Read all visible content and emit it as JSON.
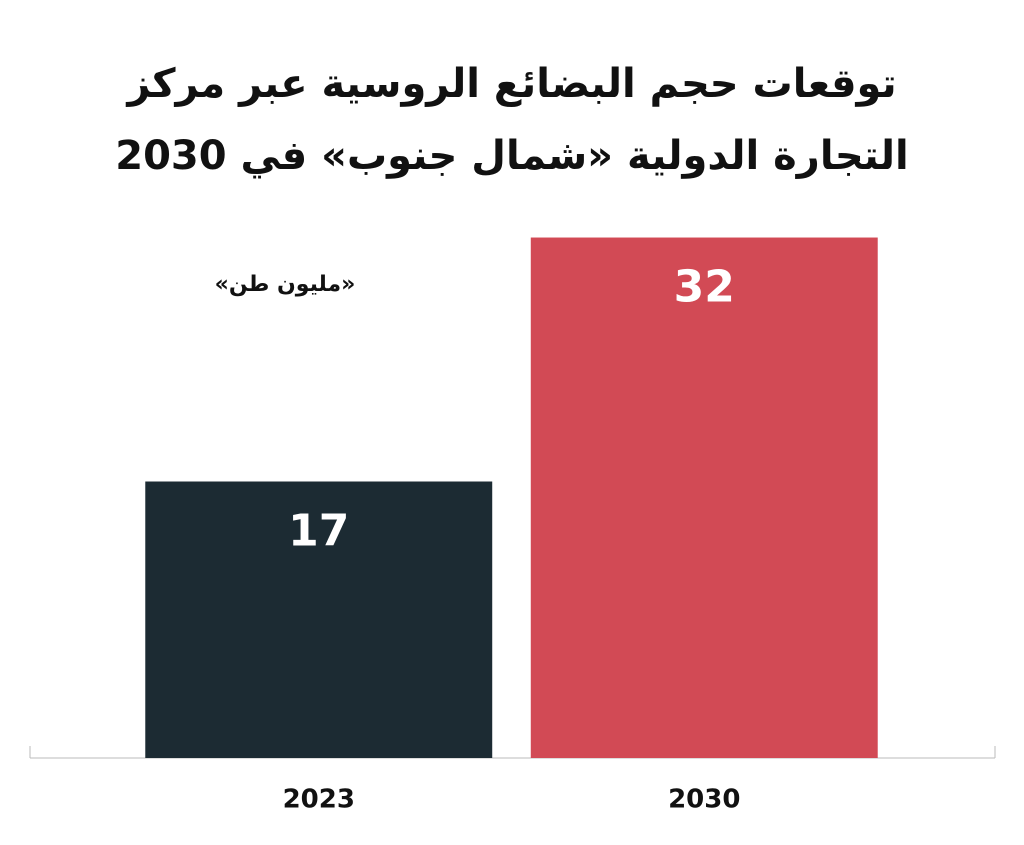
{
  "chart_data": {
    "type": "bar",
    "title": "توقعات حجم البضائع الروسية عبر مركز التجارة الدولية «شمال جنوب» في 2030",
    "subtitle": "«مليون طن»",
    "categories": [
      "2023",
      "2030"
    ],
    "values": [
      17,
      32
    ],
    "colors": [
      "#1c2b33",
      "#d24a55"
    ],
    "ylim": [
      0,
      34
    ]
  }
}
